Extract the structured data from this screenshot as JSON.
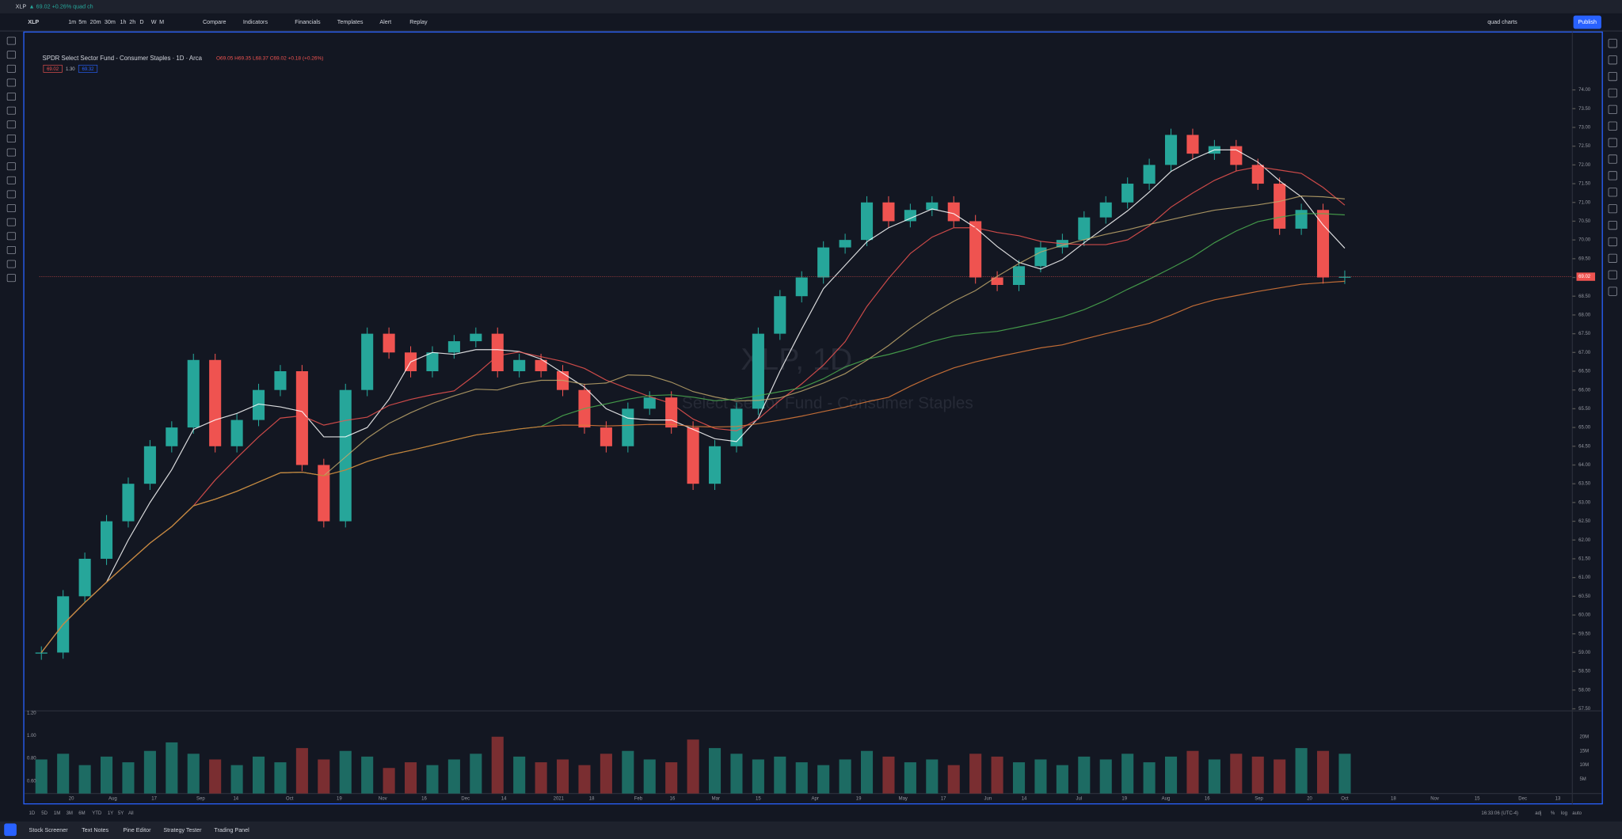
{
  "tab": {
    "symbol": "XLP",
    "quote": "▲ 69.02 +0.26% quad ch"
  },
  "toolbar": {
    "symbol": "XLP",
    "intervals": [
      "1m",
      "5m",
      "20m",
      "30m",
      "1h",
      "2h",
      "D",
      "W",
      "M"
    ],
    "buttons": [
      "Compare",
      "Indicators",
      "Financials",
      "Templates",
      "Alert",
      "Replay"
    ],
    "layout": "quad charts",
    "publish": "Publish"
  },
  "legend": {
    "title": "SPDR Select Sector Fund - Consumer Staples · 1D · Arca",
    "ohlc": "O69.05 H69.35 L68.37 C69.02 +0.18 (+0.26%)",
    "badges": [
      "69.02",
      "1.30",
      "69.32"
    ]
  },
  "watermark": {
    "symbol": "XLP, 1D",
    "name": "Select Sector Fund - Consumer Staples"
  },
  "price_axis": {
    "ticks": [
      {
        "value": 74,
        "label": "74.00"
      },
      {
        "value": 73.5,
        "label": "73.50"
      },
      {
        "value": 73,
        "label": "73.00"
      },
      {
        "value": 72.5,
        "label": "72.50"
      },
      {
        "value": 72,
        "label": "72.00"
      },
      {
        "value": 71.5,
        "label": "71.50"
      },
      {
        "value": 71,
        "label": "71.00"
      },
      {
        "value": 70.5,
        "label": "70.50"
      },
      {
        "value": 70,
        "label": "70.00"
      },
      {
        "value": 69.5,
        "label": "69.50"
      },
      {
        "value": 69,
        "label": "69.00"
      },
      {
        "value": 68.5,
        "label": "68.50"
      },
      {
        "value": 68,
        "label": "68.00"
      },
      {
        "value": 67.5,
        "label": "67.50"
      },
      {
        "value": 67,
        "label": "67.00"
      },
      {
        "value": 66.5,
        "label": "66.50"
      },
      {
        "value": 66,
        "label": "66.00"
      },
      {
        "value": 65.5,
        "label": "65.50"
      },
      {
        "value": 65,
        "label": "65.00"
      },
      {
        "value": 64.5,
        "label": "64.50"
      },
      {
        "value": 64,
        "label": "64.00"
      },
      {
        "value": 63.5,
        "label": "63.50"
      },
      {
        "value": 63,
        "label": "63.00"
      },
      {
        "value": 62.5,
        "label": "62.50"
      },
      {
        "value": 62,
        "label": "62.00"
      },
      {
        "value": 61.5,
        "label": "61.50"
      },
      {
        "value": 61,
        "label": "61.00"
      },
      {
        "value": 60.5,
        "label": "60.50"
      },
      {
        "value": 60,
        "label": "60.00"
      },
      {
        "value": 59.5,
        "label": "59.50"
      },
      {
        "value": 59,
        "label": "59.00"
      },
      {
        "value": 58.5,
        "label": "58.50"
      },
      {
        "value": 58,
        "label": "58.00"
      },
      {
        "value": 57.5,
        "label": "57.50"
      }
    ],
    "last": {
      "value": 69.02,
      "label": "69.02"
    }
  },
  "time_axis": [
    "20",
    "Aug",
    "17",
    "Sep",
    "14",
    "Oct",
    "19",
    "Nov",
    "16",
    "Dec",
    "14",
    "2021",
    "18",
    "Feb",
    "16",
    "Mar",
    "15",
    "Apr",
    "19",
    "May",
    "17",
    "Jun",
    "14",
    "Jul",
    "19",
    "Aug",
    "16",
    "Sep",
    "20",
    "Oct",
    "18",
    "Nov",
    "15",
    "Dec",
    "13"
  ],
  "candles": {
    "close": [
      59.0,
      60.5,
      61.5,
      62.5,
      63.5,
      64.5,
      65.0,
      66.8,
      64.5,
      65.2,
      66.0,
      66.5,
      64.0,
      62.5,
      66.0,
      67.5,
      67.0,
      66.5,
      67.0,
      67.3,
      67.5,
      66.5,
      66.8,
      66.5,
      66.0,
      65.0,
      64.5,
      65.5,
      65.8,
      65.0,
      63.5,
      64.5,
      65.5,
      67.5,
      68.5,
      69.0,
      69.8,
      70.0,
      71.0,
      70.5,
      70.8,
      71.0,
      70.5,
      69.0,
      68.8,
      69.3,
      69.8,
      70.0,
      70.6,
      71.0,
      71.5,
      72.0,
      72.8,
      72.3,
      72.5,
      72.0,
      71.5,
      70.3,
      70.8,
      69.0,
      69.02
    ]
  },
  "volume": {
    "values": [
      12,
      14,
      10,
      13,
      11,
      15,
      18,
      14,
      12,
      10,
      13,
      11,
      16,
      12,
      15,
      13,
      9,
      11,
      10,
      12,
      14,
      20,
      13,
      11,
      12,
      10,
      14,
      15,
      12,
      11,
      19,
      16,
      14,
      12,
      13,
      11,
      10,
      12,
      15,
      13,
      11,
      12,
      10,
      14,
      13,
      11,
      12,
      10,
      13,
      12,
      14,
      11,
      13,
      15,
      12,
      14,
      13,
      12,
      16,
      15,
      14
    ],
    "ticks": [
      {
        "value": 20,
        "label": "20M"
      },
      {
        "value": 15,
        "label": "15M"
      },
      {
        "value": 10,
        "label": "10M"
      },
      {
        "value": 5,
        "label": "5M"
      }
    ]
  },
  "oscillator": {
    "ticks": [
      {
        "value": 1.2,
        "label": "1.20"
      },
      {
        "value": 1.0,
        "label": "1.00"
      },
      {
        "value": 0.8,
        "label": "0.80"
      },
      {
        "value": 0.6,
        "label": "0.60"
      }
    ]
  },
  "footer": {
    "ranges": [
      "1D",
      "5D",
      "1M",
      "3M",
      "6M",
      "YTD",
      "1Y",
      "5Y",
      "All"
    ],
    "clock": "16:33:06 (UTC-4)",
    "options": [
      "adj",
      "%",
      "log",
      "auto"
    ],
    "tabs": [
      "Stock Screener",
      "Text Notes",
      "Pine Editor",
      "Strategy Tester",
      "Trading Panel"
    ]
  }
}
